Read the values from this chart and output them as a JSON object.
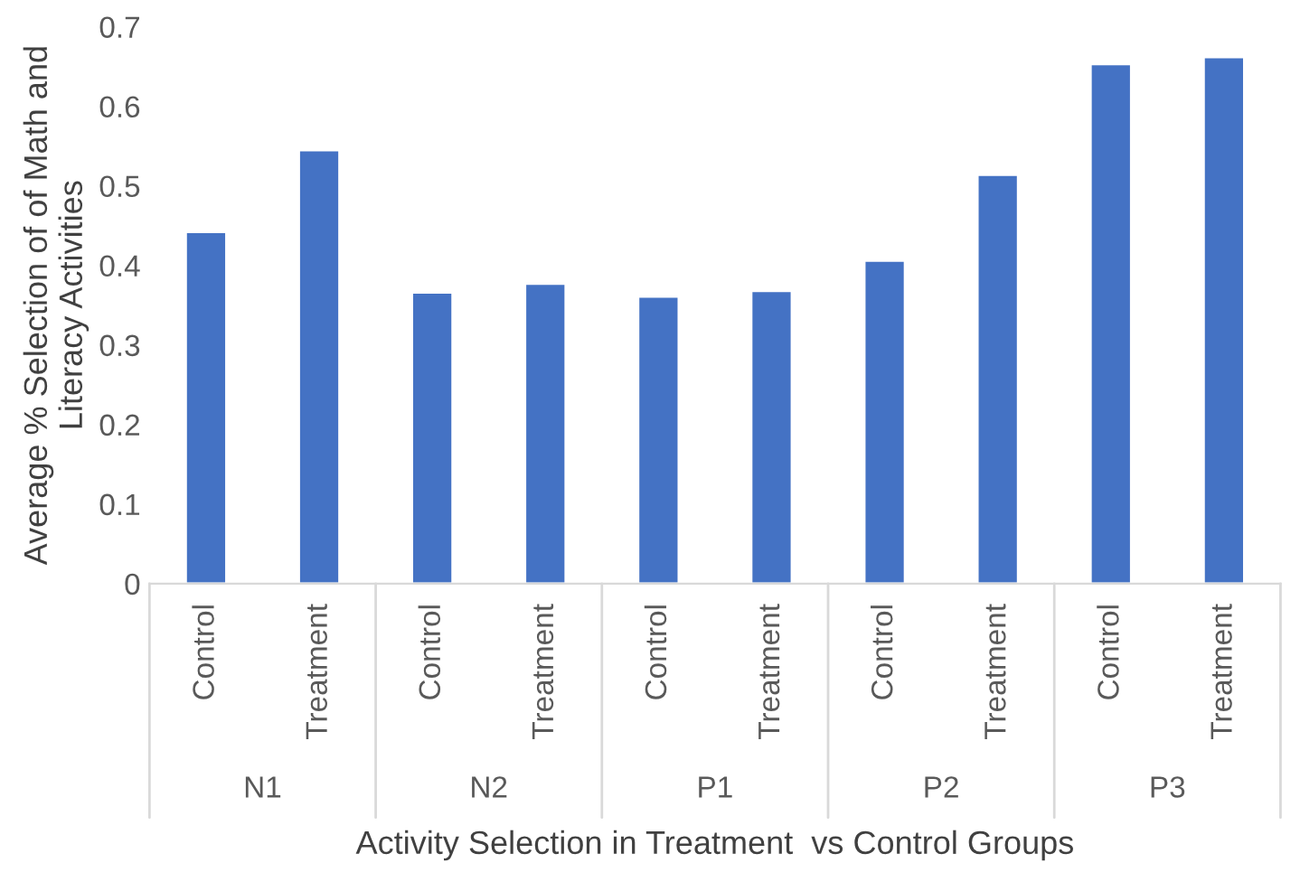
{
  "chart_data": {
    "type": "bar",
    "categories": [
      "Control",
      "Treatment",
      "Control",
      "Treatment",
      "Control",
      "Treatment",
      "Control",
      "Treatment",
      "Control",
      "Treatment"
    ],
    "values": [
      0.442,
      0.545,
      0.366,
      0.377,
      0.361,
      0.368,
      0.406,
      0.514,
      0.653,
      0.662
    ],
    "color": "#4472c4",
    "annotations": [
      "N1",
      "N2",
      "P1",
      "P2",
      "P3"
    ],
    "xlabel": "Activity Selection in Treatment  vs Control Groups",
    "ylabel": "Average % Selection of of Math and Literacy Activities",
    "ylim": [
      0,
      0.7
    ],
    "yticks": [
      0,
      0.1,
      0.2,
      0.3,
      0.4,
      0.5,
      0.6,
      0.7
    ],
    "grid": false
  }
}
